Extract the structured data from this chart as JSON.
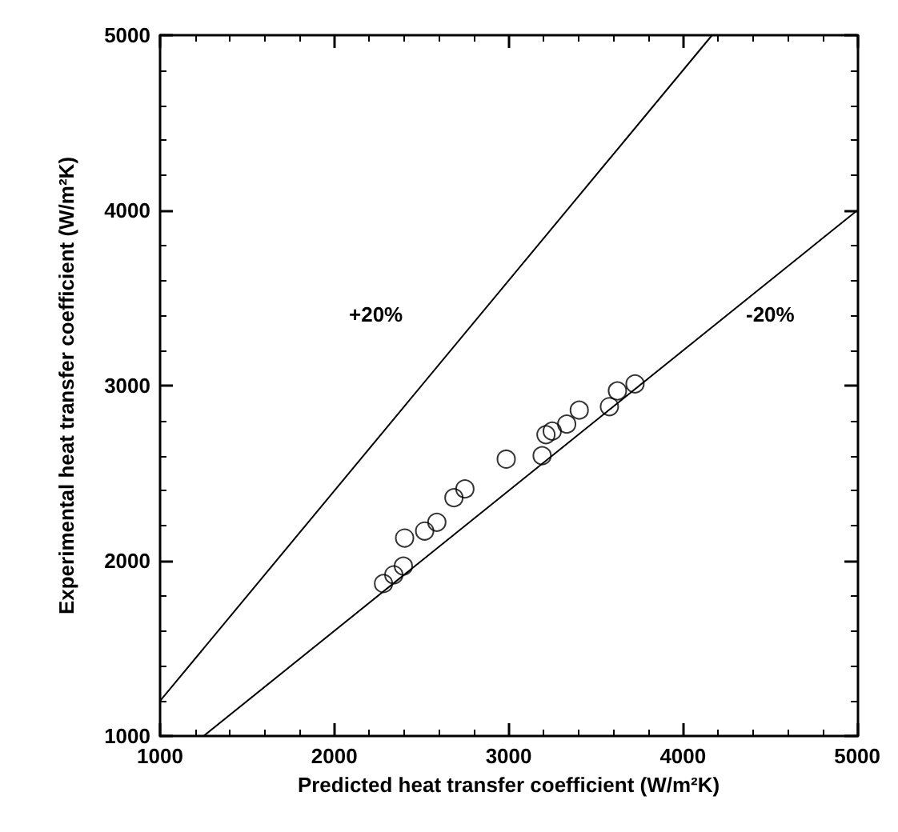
{
  "chart_data": {
    "type": "scatter",
    "xlabel": "Predicted heat transfer coefficient (W/m²K)",
    "ylabel": "Experimental heat transfer coefficient (W/m²K)",
    "xlim": [
      1000,
      5000
    ],
    "ylim": [
      1000,
      5000
    ],
    "xticks": [
      1000,
      2000,
      3000,
      4000,
      5000
    ],
    "yticks": [
      1000,
      2000,
      3000,
      4000,
      5000
    ],
    "grid": false,
    "marker": "circle",
    "series": [
      {
        "color": "#000000",
        "x": [
          2282,
          2341,
          2396,
          2403,
          2518,
          2588,
          2686,
          2749,
          2986,
          3192,
          3214,
          3250,
          3333,
          3405,
          3578,
          3624,
          3725
        ],
        "values": [
          1870,
          1920,
          1970,
          2130,
          2170,
          2220,
          2360,
          2410,
          2580,
          2600,
          2720,
          2740,
          2780,
          2860,
          2880,
          2970,
          3010
        ]
      },
      {
        "type": "line",
        "color": "#000000",
        "marker": "none",
        "x": [
          1000,
          4167
        ],
        "values": [
          1200,
          5000
        ]
      },
      {
        "type": "line",
        "color": "#000000",
        "marker": "none",
        "x": [
          1250,
          5000
        ],
        "values": [
          1000,
          4000
        ]
      }
    ],
    "annotations": [
      "+20%",
      "-20%"
    ]
  }
}
